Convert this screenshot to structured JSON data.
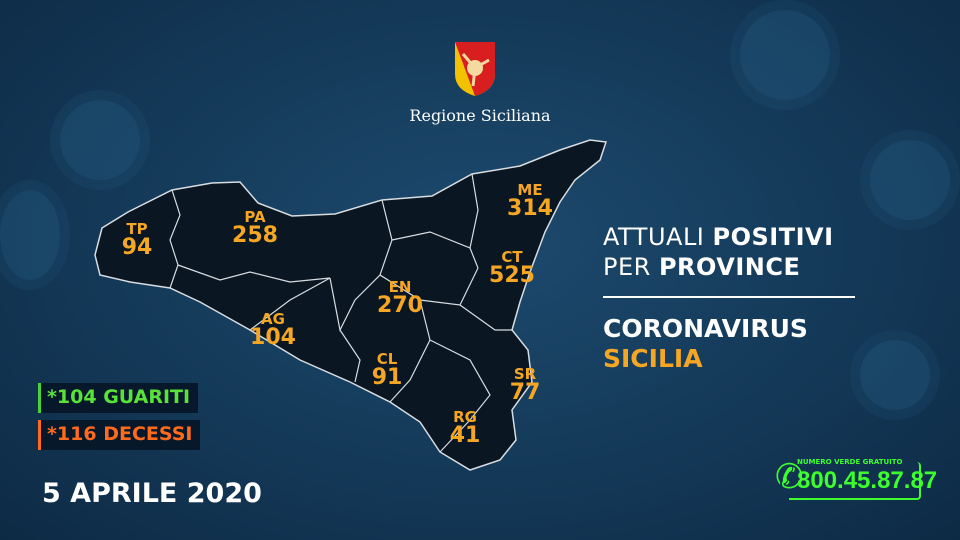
{
  "logo": {
    "label": "Regione Siciliana"
  },
  "title": {
    "line1_light": "ATTUALI ",
    "line1_bold": "POSITIVI",
    "line2_light": "PER ",
    "line2_bold": "PROVINCE"
  },
  "subtitle": {
    "line1": "CORONAVIRUS",
    "line2": "SICILIA"
  },
  "provinces": [
    {
      "code": "TP",
      "value": "94"
    },
    {
      "code": "PA",
      "value": "258"
    },
    {
      "code": "ME",
      "value": "314"
    },
    {
      "code": "CT",
      "value": "525"
    },
    {
      "code": "EN",
      "value": "270"
    },
    {
      "code": "AG",
      "value": "104"
    },
    {
      "code": "CL",
      "value": "91"
    },
    {
      "code": "SR",
      "value": "77"
    },
    {
      "code": "RG",
      "value": "41"
    }
  ],
  "stats": {
    "guariti": "*104 GUARITI",
    "decessi": "*116 DECESSI"
  },
  "date": "5 APRILE 2020",
  "hotline": {
    "label": "NUMERO VERDE GRATUITO",
    "number": "800.45.87.87",
    "icon": "phone-icon"
  },
  "colors": {
    "accent": "#f5a623",
    "green": "#58e23a",
    "orange": "#ff6b1a",
    "background": "#143958",
    "map": "#0a1622"
  }
}
